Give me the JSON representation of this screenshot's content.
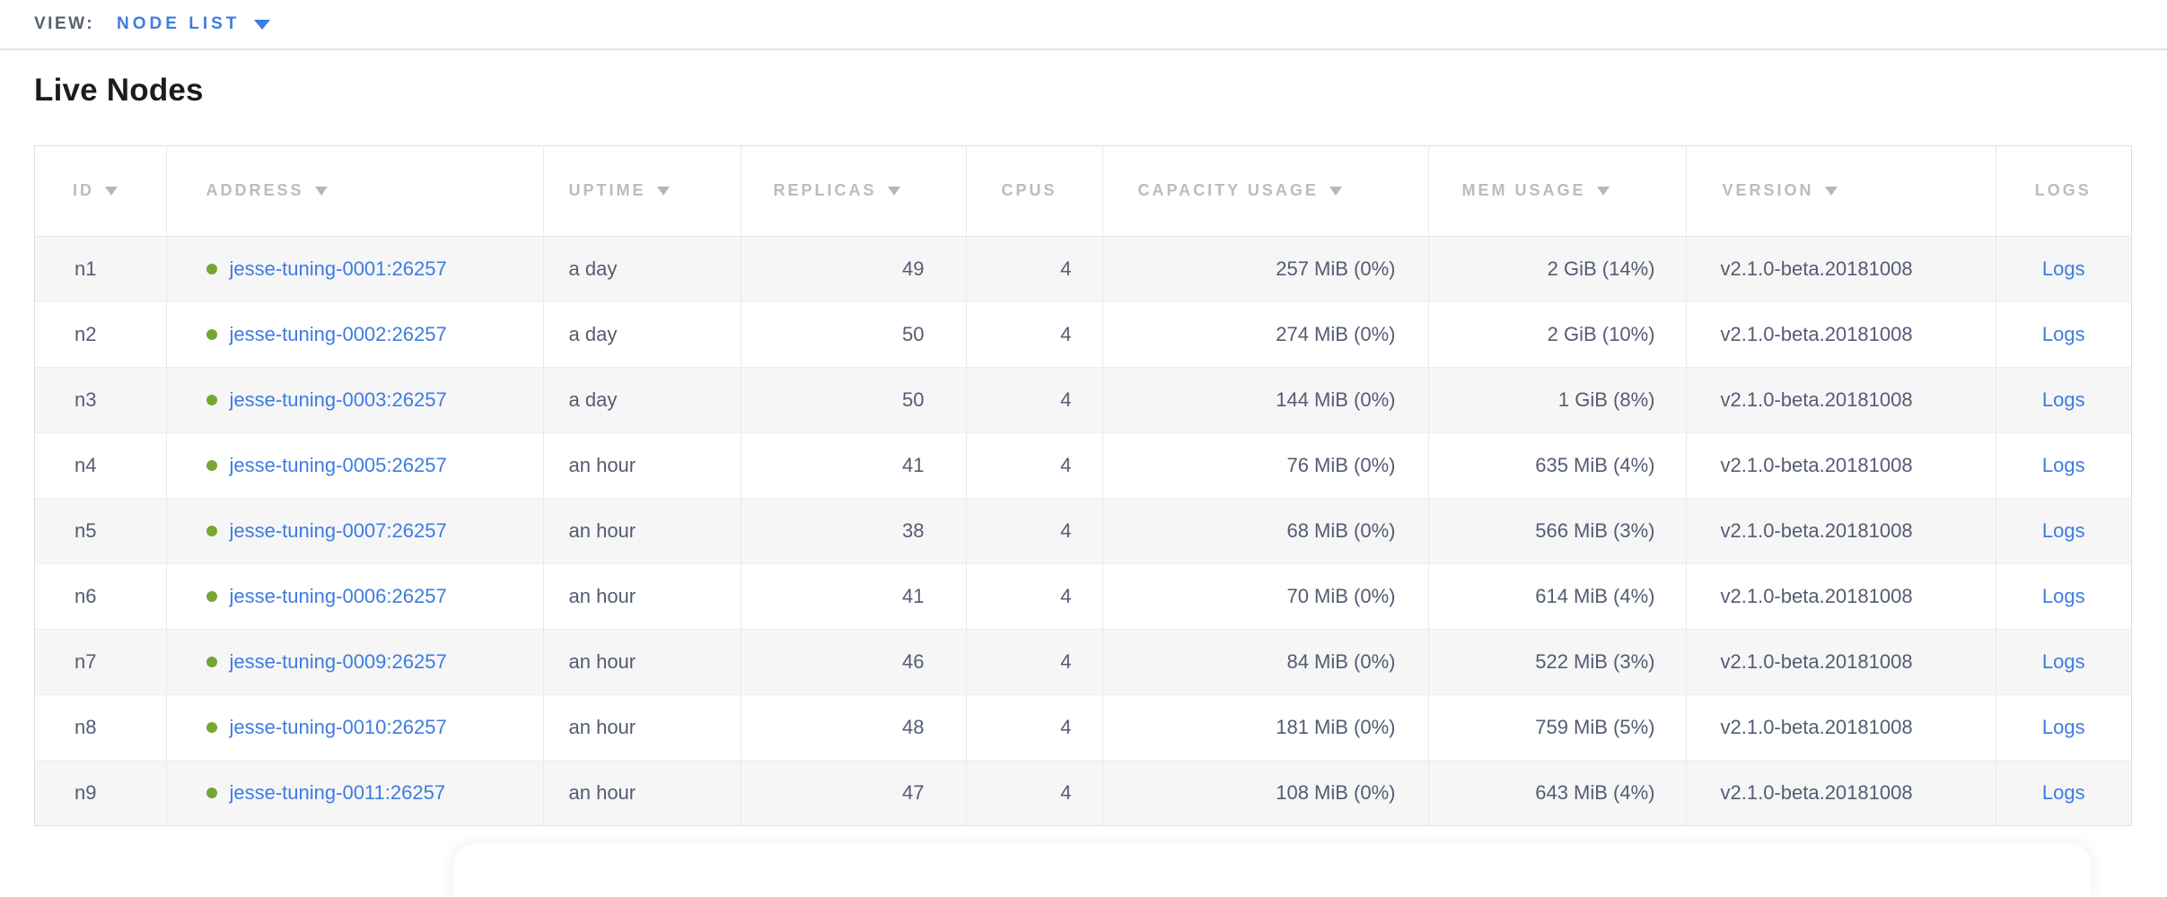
{
  "toolbar": {
    "view_label": "VIEW:",
    "view_value": "NODE LIST"
  },
  "page": {
    "title": "Live Nodes"
  },
  "table": {
    "columns": [
      {
        "key": "id",
        "label": "ID",
        "sortable": true
      },
      {
        "key": "address",
        "label": "ADDRESS",
        "sortable": true
      },
      {
        "key": "uptime",
        "label": "UPTIME",
        "sortable": true
      },
      {
        "key": "replicas",
        "label": "REPLICAS",
        "sortable": true
      },
      {
        "key": "cpus",
        "label": "CPUS",
        "sortable": false
      },
      {
        "key": "capacity",
        "label": "CAPACITY USAGE",
        "sortable": true
      },
      {
        "key": "mem",
        "label": "MEM USAGE",
        "sortable": true
      },
      {
        "key": "version",
        "label": "VERSION",
        "sortable": true
      },
      {
        "key": "logs",
        "label": "LOGS",
        "sortable": false
      }
    ],
    "rows": [
      {
        "id": "n1",
        "address": "jesse-tuning-0001:26257",
        "uptime": "a day",
        "replicas": "49",
        "cpus": "4",
        "capacity": "257 MiB (0%)",
        "mem": "2 GiB (14%)",
        "version": "v2.1.0-beta.20181008",
        "logs": "Logs"
      },
      {
        "id": "n2",
        "address": "jesse-tuning-0002:26257",
        "uptime": "a day",
        "replicas": "50",
        "cpus": "4",
        "capacity": "274 MiB (0%)",
        "mem": "2 GiB (10%)",
        "version": "v2.1.0-beta.20181008",
        "logs": "Logs"
      },
      {
        "id": "n3",
        "address": "jesse-tuning-0003:26257",
        "uptime": "a day",
        "replicas": "50",
        "cpus": "4",
        "capacity": "144 MiB (0%)",
        "mem": "1 GiB (8%)",
        "version": "v2.1.0-beta.20181008",
        "logs": "Logs"
      },
      {
        "id": "n4",
        "address": "jesse-tuning-0005:26257",
        "uptime": "an hour",
        "replicas": "41",
        "cpus": "4",
        "capacity": "76 MiB (0%)",
        "mem": "635 MiB (4%)",
        "version": "v2.1.0-beta.20181008",
        "logs": "Logs"
      },
      {
        "id": "n5",
        "address": "jesse-tuning-0007:26257",
        "uptime": "an hour",
        "replicas": "38",
        "cpus": "4",
        "capacity": "68 MiB (0%)",
        "mem": "566 MiB (3%)",
        "version": "v2.1.0-beta.20181008",
        "logs": "Logs"
      },
      {
        "id": "n6",
        "address": "jesse-tuning-0006:26257",
        "uptime": "an hour",
        "replicas": "41",
        "cpus": "4",
        "capacity": "70 MiB (0%)",
        "mem": "614 MiB (4%)",
        "version": "v2.1.0-beta.20181008",
        "logs": "Logs"
      },
      {
        "id": "n7",
        "address": "jesse-tuning-0009:26257",
        "uptime": "an hour",
        "replicas": "46",
        "cpus": "4",
        "capacity": "84 MiB (0%)",
        "mem": "522 MiB (3%)",
        "version": "v2.1.0-beta.20181008",
        "logs": "Logs"
      },
      {
        "id": "n8",
        "address": "jesse-tuning-0010:26257",
        "uptime": "an hour",
        "replicas": "48",
        "cpus": "4",
        "capacity": "181 MiB (0%)",
        "mem": "759 MiB (5%)",
        "version": "v2.1.0-beta.20181008",
        "logs": "Logs"
      },
      {
        "id": "n9",
        "address": "jesse-tuning-0011:26257",
        "uptime": "an hour",
        "replicas": "47",
        "cpus": "4",
        "capacity": "108 MiB (0%)",
        "mem": "643 MiB (4%)",
        "version": "v2.1.0-beta.20181008",
        "logs": "Logs"
      }
    ]
  },
  "colors": {
    "accent_blue": "#3e7ce0",
    "status_green": "#76a633",
    "header_gray": "#b9bcc2",
    "body_text": "#535c72",
    "stripe": "#f6f6f7"
  }
}
